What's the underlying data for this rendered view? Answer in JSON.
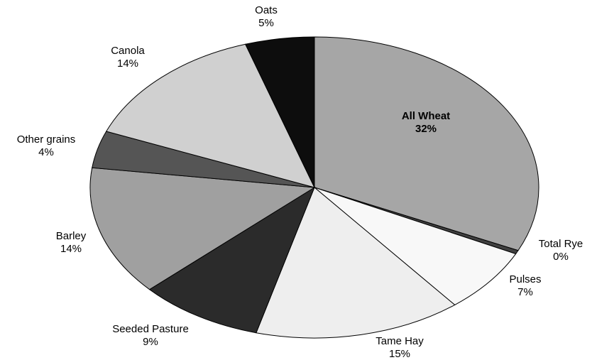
{
  "chart_data": {
    "type": "pie",
    "categories": [
      "All Wheat",
      "Total Rye",
      "Pulses",
      "Tame Hay",
      "Seeded Pasture",
      "Barley",
      "Other grains",
      "Canola",
      "Oats"
    ],
    "values": [
      32,
      0.4,
      7,
      15,
      9,
      14,
      4,
      14,
      5
    ],
    "value_labels": [
      "32%",
      "0%",
      "7%",
      "15%",
      "9%",
      "14%",
      "4%",
      "14%",
      "5%"
    ],
    "colors": [
      "#a6a6a6",
      "#404040",
      "#f8f8f8",
      "#eeeeee",
      "#2b2b2b",
      "#a0a0a0",
      "#555555",
      "#d0d0d0",
      "#0d0d0d"
    ]
  }
}
